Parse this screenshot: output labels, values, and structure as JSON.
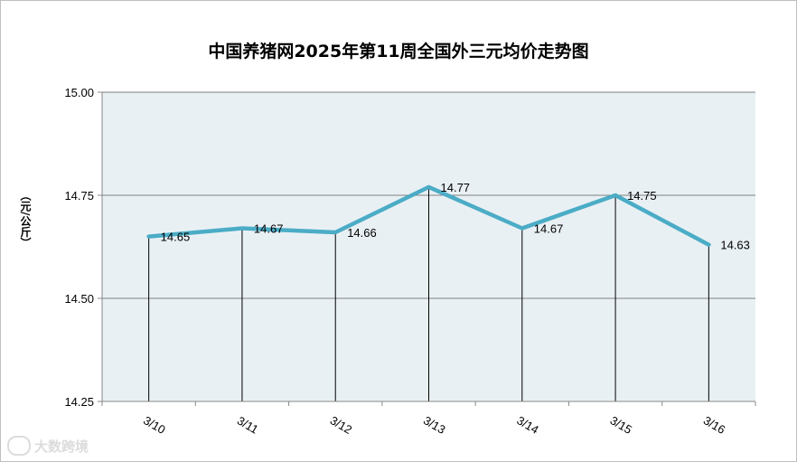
{
  "chart_data": {
    "type": "line",
    "title": "中国养猪网2025年第11周全国外三元均价走势图",
    "ylabel": "（元/公斤）",
    "categories": [
      "3/10",
      "3/11",
      "3/12",
      "3/13",
      "3/14",
      "3/15",
      "3/16"
    ],
    "values": [
      14.65,
      14.67,
      14.66,
      14.77,
      14.67,
      14.75,
      14.63
    ],
    "data_labels": [
      "14.65",
      "14.67",
      "14.66",
      "14.77",
      "14.67",
      "14.75",
      "14.63"
    ],
    "ylim": [
      14.25,
      15.0
    ],
    "yticks": [
      "14.25",
      "14.50",
      "14.75",
      "15.00"
    ],
    "grid": true,
    "drop_lines": true,
    "line_color": "#4bacc6",
    "plot_bg": "#e9f0f4"
  },
  "watermark": {
    "logo_icon": "chat-bubble-icon",
    "text": "大数跨境"
  }
}
